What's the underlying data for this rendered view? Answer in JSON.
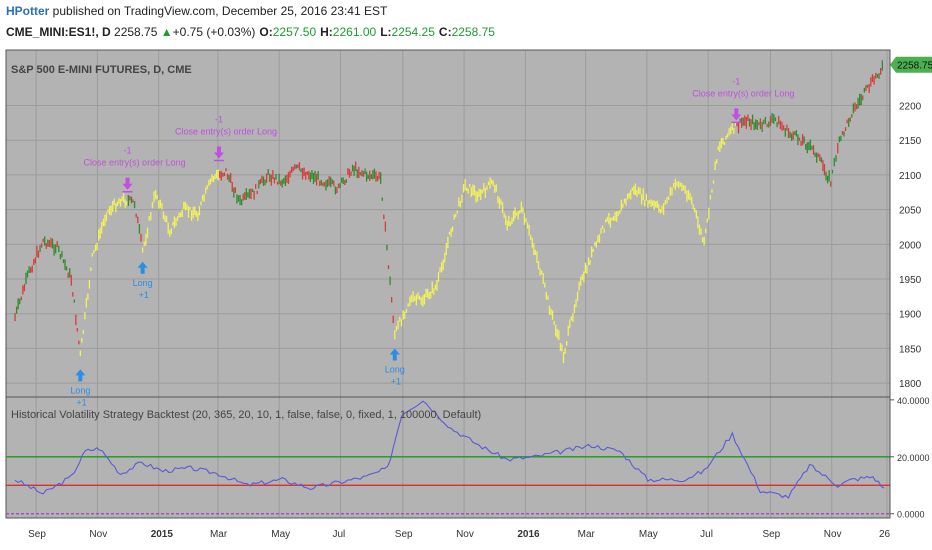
{
  "header": {
    "author": "HPotter",
    "published_text": " published on TradingView.com, December 25, 2016 23:41 EST",
    "symbol": "CME_MINI:ES1!, D",
    "last": "2258.75",
    "change": "+0.75 (+0.03%)",
    "open_label": "O:",
    "open": "2257.50",
    "high_label": "H:",
    "high": "2261.00",
    "low_label": "L:",
    "low": "2254.25",
    "close_label": "C:",
    "close": "2258.75"
  },
  "colors": {
    "panel_bg": "#b3b3b3",
    "grid": "#9c9c9c",
    "up_candle": "#2e8b2e",
    "down_candle": "#d83b3b",
    "in_position": "#f2f25c",
    "hv_line": "#5a5ad6",
    "upper_level": "#1a9a1a",
    "lower_level": "#e02020",
    "zero_level": "#a040c0",
    "entry_marker": "#2a8ee6",
    "exit_marker": "#c050e0",
    "price_tag": "#4caf50"
  },
  "chart_data": [
    {
      "type": "line",
      "title": "S&P 500 E-MINI FUTURES, D, CME",
      "y_ticks": [
        1800,
        1850,
        1900,
        1950,
        2000,
        2050,
        2100,
        2150,
        2200
      ],
      "ylim": [
        1780,
        2280
      ],
      "last_price_label": "2258.75",
      "x_labels": [
        "Sep",
        "Nov",
        "2015",
        "Mar",
        "May",
        "Jul",
        "Sep",
        "Nov",
        "2016",
        "Mar",
        "May",
        "Jul",
        "Sep",
        "Nov",
        "26"
      ],
      "x": [
        "2014-08-11",
        "2014-08-25",
        "2014-09-08",
        "2014-09-22",
        "2014-10-06",
        "2014-10-15",
        "2014-10-27",
        "2014-11-10",
        "2014-11-24",
        "2014-12-08",
        "2014-12-16",
        "2014-12-29",
        "2015-01-12",
        "2015-01-26",
        "2015-02-09",
        "2015-02-23",
        "2015-03-09",
        "2015-03-23",
        "2015-04-06",
        "2015-04-20",
        "2015-05-04",
        "2015-05-18",
        "2015-06-01",
        "2015-06-15",
        "2015-06-29",
        "2015-07-13",
        "2015-07-27",
        "2015-08-10",
        "2015-08-24",
        "2015-09-08",
        "2015-09-21",
        "2015-10-05",
        "2015-10-19",
        "2015-11-02",
        "2015-11-16",
        "2015-11-30",
        "2015-12-14",
        "2015-12-28",
        "2016-01-11",
        "2016-01-25",
        "2016-02-08",
        "2016-02-22",
        "2016-03-07",
        "2016-03-21",
        "2016-04-04",
        "2016-04-18",
        "2016-05-02",
        "2016-05-16",
        "2016-05-31",
        "2016-06-13",
        "2016-06-27",
        "2016-07-11",
        "2016-07-25",
        "2016-08-08",
        "2016-08-22",
        "2016-09-06",
        "2016-09-19",
        "2016-10-03",
        "2016-10-17",
        "2016-10-31",
        "2016-11-07",
        "2016-11-21",
        "2016-12-05",
        "2016-12-23"
      ],
      "series": [
        {
          "values": [
            1895,
            1960,
            2005,
            1995,
            1950,
            1840,
            1980,
            2045,
            2065,
            2060,
            1990,
            2075,
            2020,
            2050,
            2045,
            2095,
            2105,
            2060,
            2075,
            2100,
            2090,
            2110,
            2100,
            2090,
            2080,
            2110,
            2100,
            2095,
            1870,
            1920,
            1920,
            1940,
            2020,
            2085,
            2070,
            2090,
            2030,
            2050,
            1990,
            1910,
            1840,
            1930,
            1985,
            2030,
            2050,
            2080,
            2060,
            2050,
            2090,
            2070,
            2000,
            2140,
            2165,
            2180,
            2170,
            2180,
            2160,
            2150,
            2130,
            2090,
            2140,
            2190,
            2220,
            2258.75
          ]
        }
      ],
      "markers": [
        {
          "label": "Long",
          "qty": "+1",
          "kind": "entry",
          "date": "2014-10-15",
          "price": 1840
        },
        {
          "label": "Close entry(s) order Long",
          "qty": "-1",
          "kind": "exit",
          "date": "2014-12-01",
          "price": 2070
        },
        {
          "label": "Long",
          "qty": "+1",
          "kind": "entry",
          "date": "2014-12-16",
          "price": 1995
        },
        {
          "label": "Close entry(s) order Long",
          "qty": "-1",
          "kind": "exit",
          "date": "2015-03-02",
          "price": 2115
        },
        {
          "label": "Long",
          "qty": "+1",
          "kind": "entry",
          "date": "2015-08-24",
          "price": 1870
        },
        {
          "label": "Close entry(s) order Long",
          "qty": "-1",
          "kind": "exit",
          "date": "2016-07-29",
          "price": 2170
        }
      ]
    },
    {
      "type": "line",
      "title": "Historical Volatility Strategy Backtest (20, 365, 20, 10, 1, false, false, 0, fixed, 1, 100000, Default)",
      "y_ticks": [
        0,
        20,
        40
      ],
      "y_tick_labels": [
        "0.0000",
        "20.0000",
        "40.0000"
      ],
      "ylim": [
        -1.5,
        41
      ],
      "reference_lines": [
        20,
        10,
        0
      ],
      "x": [
        "2014-08-11",
        "2014-09-08",
        "2014-10-06",
        "2014-10-20",
        "2014-11-03",
        "2014-11-24",
        "2014-12-15",
        "2015-01-05",
        "2015-02-02",
        "2015-03-02",
        "2015-03-30",
        "2015-05-04",
        "2015-06-01",
        "2015-06-29",
        "2015-07-27",
        "2015-08-17",
        "2015-08-31",
        "2015-09-21",
        "2015-10-19",
        "2015-11-16",
        "2015-12-14",
        "2016-01-11",
        "2016-02-08",
        "2016-03-07",
        "2016-04-04",
        "2016-05-02",
        "2016-06-06",
        "2016-06-27",
        "2016-07-25",
        "2016-08-22",
        "2016-09-19",
        "2016-10-10",
        "2016-11-07",
        "2016-11-21",
        "2016-12-12",
        "2016-12-23"
      ],
      "series": [
        {
          "values": [
            12,
            7,
            13,
            22,
            23,
            14,
            18,
            15,
            16,
            14,
            10,
            12,
            9,
            11,
            13,
            16,
            35,
            40,
            30,
            24,
            19,
            20,
            22,
            24,
            22,
            12,
            12,
            15,
            28,
            8,
            6,
            17,
            10,
            12,
            13,
            9
          ]
        }
      ]
    }
  ]
}
